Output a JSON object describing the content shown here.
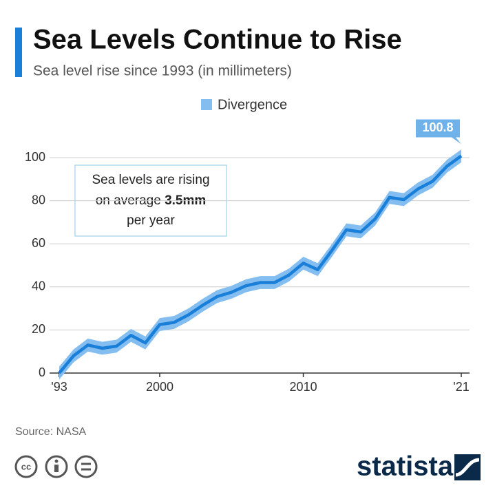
{
  "chart_data": {
    "type": "line",
    "title": "Sea Levels Continue to Rise",
    "subtitle": "Sea level rise since 1993 (in millimeters)",
    "x": [
      1993,
      1994,
      1995,
      1996,
      1997,
      1998,
      1999,
      2000,
      2001,
      2002,
      2003,
      2004,
      2005,
      2006,
      2007,
      2008,
      2009,
      2010,
      2011,
      2012,
      2013,
      2014,
      2015,
      2016,
      2017,
      2018,
      2019,
      2020,
      2021
    ],
    "values": [
      0,
      8,
      13,
      11.5,
      12.5,
      17.5,
      14,
      22.5,
      23.5,
      27,
      31.5,
      35.5,
      37.5,
      40.5,
      42,
      42,
      45.5,
      51,
      48,
      57,
      66.5,
      65.5,
      71.5,
      81.5,
      80.5,
      85.5,
      89,
      96,
      100.8
    ],
    "color": "#1a7fd8",
    "divergence": {
      "name": "Divergence",
      "color": "#84bdef",
      "halfwidth": 3
    },
    "last_value_label": "100.8",
    "xlim": [
      1993,
      2021
    ],
    "xticks": [
      {
        "value": 1993,
        "label": "'93"
      },
      2000,
      2010,
      {
        "value": 2021,
        "label": "'21"
      }
    ],
    "ylim": [
      0,
      100
    ],
    "yticks": [
      0,
      20,
      40,
      60,
      80,
      100
    ],
    "grid": true,
    "annotation": {
      "line1": "Sea levels are rising",
      "line2a": "on average",
      "line2b": "3.5mm",
      "line3": "per year"
    },
    "source": "Source: NASA",
    "brand": "statista"
  }
}
